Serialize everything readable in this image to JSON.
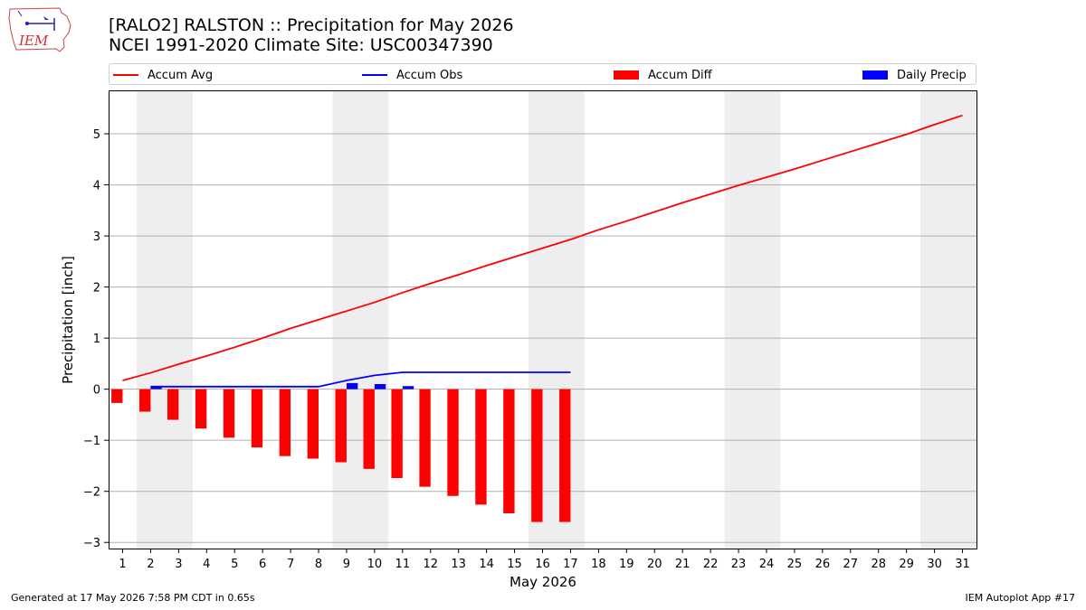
{
  "header": {
    "logo_text": "IEM",
    "title_line1": "[RALO2] RALSTON :: Precipitation for May 2026",
    "title_line2": "NCEI 1991-2020 Climate Site: USC00347390"
  },
  "legend": [
    {
      "label": "Accum Avg",
      "kind": "line",
      "color": "#ff0000"
    },
    {
      "label": "Accum Obs",
      "kind": "line",
      "color": "#0000ff"
    },
    {
      "label": "Accum Diff",
      "kind": "patch",
      "color": "#ff0000"
    },
    {
      "label": "Daily Precip",
      "kind": "patch",
      "color": "#0000ff"
    }
  ],
  "footer": {
    "left": "Generated at 17 May 2026 7:58 PM CDT in 0.65s",
    "right": "IEM Autoplot App #17"
  },
  "chart_data": {
    "type": "bar",
    "xlabel": "May 2026",
    "ylabel": "Precipitation [inch]",
    "xlim": [
      0.5,
      31.5
    ],
    "ylim": [
      -3.12,
      5.85
    ],
    "yticks": [
      -3,
      -2,
      -1,
      0,
      1,
      2,
      3,
      4,
      5
    ],
    "xticks": [
      1,
      2,
      3,
      4,
      5,
      6,
      7,
      8,
      9,
      10,
      11,
      12,
      13,
      14,
      15,
      16,
      17,
      18,
      19,
      20,
      21,
      22,
      23,
      24,
      25,
      26,
      27,
      28,
      29,
      30,
      31
    ],
    "grid": "horizontal",
    "legend_position": "top",
    "weekend_shading": [
      [
        1.5,
        3.5
      ],
      [
        8.5,
        10.5
      ],
      [
        15.5,
        17.5
      ],
      [
        22.5,
        24.5
      ],
      [
        29.5,
        31.5
      ]
    ],
    "series": [
      {
        "name": "Accum Avg",
        "type": "line",
        "color": "#ff0000",
        "x": [
          1,
          2,
          3,
          4,
          5,
          6,
          7,
          8,
          9,
          10,
          11,
          12,
          13,
          14,
          15,
          16,
          17,
          18,
          19,
          20,
          21,
          22,
          23,
          24,
          25,
          26,
          27,
          28,
          29,
          30,
          31
        ],
        "values": [
          0.17,
          0.32,
          0.49,
          0.65,
          0.82,
          1.0,
          1.19,
          1.36,
          1.53,
          1.7,
          1.89,
          2.07,
          2.24,
          2.42,
          2.59,
          2.76,
          2.93,
          3.12,
          3.29,
          3.47,
          3.65,
          3.82,
          3.99,
          4.15,
          4.31,
          4.48,
          4.65,
          4.82,
          4.99,
          5.18,
          5.36
        ]
      },
      {
        "name": "Accum Obs",
        "type": "line",
        "color": "#0000ff",
        "x": [
          2,
          3,
          4,
          5,
          6,
          7,
          8,
          9,
          10,
          11,
          12,
          13,
          14,
          15,
          16,
          17
        ],
        "values": [
          0.05,
          0.05,
          0.05,
          0.05,
          0.05,
          0.05,
          0.05,
          0.17,
          0.27,
          0.33,
          0.33,
          0.33,
          0.33,
          0.33,
          0.33,
          0.33
        ]
      },
      {
        "name": "Accum Diff",
        "type": "bar",
        "color": "#ff0000",
        "x": [
          1,
          2,
          3,
          4,
          5,
          6,
          7,
          8,
          9,
          10,
          11,
          12,
          13,
          14,
          15,
          16,
          17
        ],
        "values": [
          -0.27,
          -0.44,
          -0.6,
          -0.77,
          -0.95,
          -1.14,
          -1.31,
          -1.36,
          -1.43,
          -1.56,
          -1.74,
          -1.91,
          -2.09,
          -2.26,
          -2.43,
          -2.6,
          -2.6
        ]
      },
      {
        "name": "Daily Precip",
        "type": "bar",
        "color": "#0000ff",
        "x": [
          2,
          9,
          10,
          11
        ],
        "values": [
          0.05,
          0.12,
          0.1,
          0.06
        ]
      }
    ]
  }
}
